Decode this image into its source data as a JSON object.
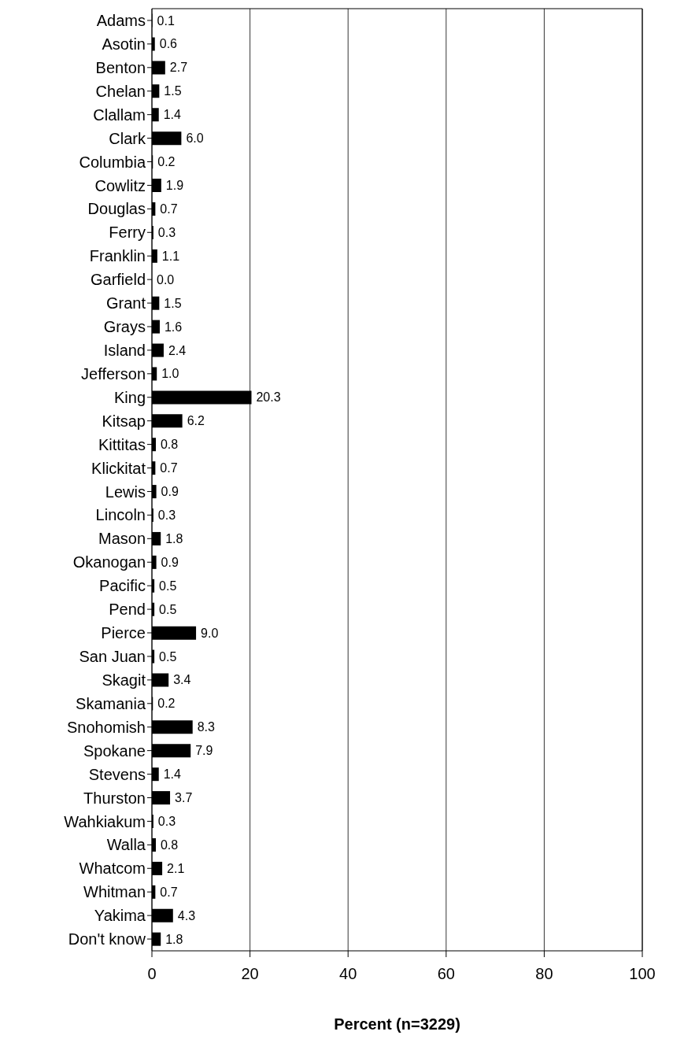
{
  "chart_data": {
    "type": "bar",
    "orientation": "horizontal",
    "xlabel": "Percent (n=3229)",
    "categories": [
      "Adams",
      "Asotin",
      "Benton",
      "Chelan",
      "Clallam",
      "Clark",
      "Columbia",
      "Cowlitz",
      "Douglas",
      "Ferry",
      "Franklin",
      "Garfield",
      "Grant",
      "Grays",
      "Island",
      "Jefferson",
      "King",
      "Kitsap",
      "Kittitas",
      "Klickitat",
      "Lewis",
      "Lincoln",
      "Mason",
      "Okanogan",
      "Pacific",
      "Pend",
      "Pierce",
      "San Juan",
      "Skagit",
      "Skamania",
      "Snohomish",
      "Spokane",
      "Stevens",
      "Thurston",
      "Wahkiakum",
      "Walla",
      "Whatcom",
      "Whitman",
      "Yakima",
      "Don't know"
    ],
    "values": [
      0.1,
      0.6,
      2.7,
      1.5,
      1.4,
      6.0,
      0.2,
      1.9,
      0.7,
      0.3,
      1.1,
      0.0,
      1.5,
      1.6,
      2.4,
      1.0,
      20.3,
      6.2,
      0.8,
      0.7,
      0.9,
      0.3,
      1.8,
      0.9,
      0.5,
      0.5,
      9.0,
      0.5,
      3.4,
      0.2,
      8.3,
      7.9,
      1.4,
      3.7,
      0.3,
      0.8,
      2.1,
      0.7,
      4.3,
      1.8
    ],
    "value_labels": [
      "0.1",
      "0.6",
      "2.7",
      "1.5",
      "1.4",
      "6.0",
      "0.2",
      "1.9",
      "0.7",
      "0.3",
      "1.1",
      "0.0",
      "1.5",
      "1.6",
      "2.4",
      "1.0",
      "20.3",
      "6.2",
      "0.8",
      "0.7",
      "0.9",
      "0.3",
      "1.8",
      "0.9",
      "0.5",
      "0.5",
      "9.0",
      "0.5",
      "3.4",
      "0.2",
      "8.3",
      "7.9",
      "1.4",
      "3.7",
      "0.3",
      "0.8",
      "2.1",
      "0.7",
      "4.3",
      "1.8"
    ],
    "color": "#000000",
    "xlim": [
      0,
      100
    ],
    "xticks": [
      0,
      20,
      40,
      60,
      80,
      100
    ],
    "grid": "x"
  }
}
